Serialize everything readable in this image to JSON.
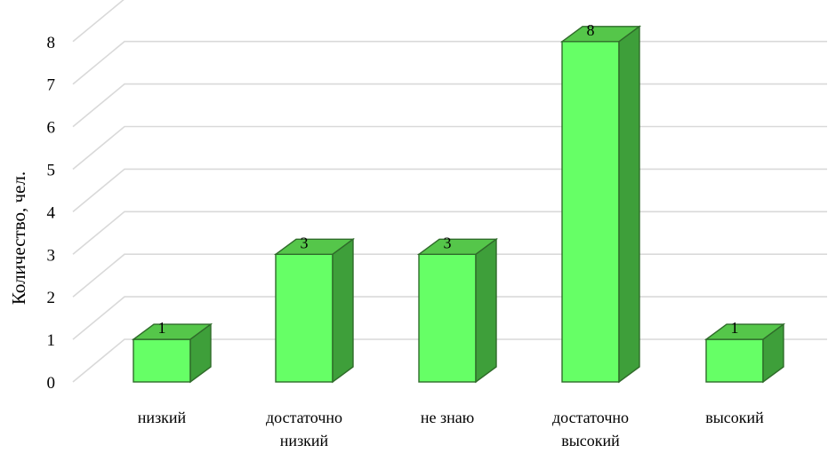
{
  "chart_data": {
    "type": "bar",
    "style": "3d-column",
    "categories": [
      "низкий",
      "достаточно низкий",
      "не знаю",
      "достаточно высокий",
      "высокий"
    ],
    "category_lines": [
      [
        "низкий"
      ],
      [
        "достаточно",
        "низкий"
      ],
      [
        "не знаю"
      ],
      [
        "достаточно",
        "высокий"
      ],
      [
        "высокий"
      ]
    ],
    "values": [
      1,
      3,
      3,
      8,
      1
    ],
    "data_labels": [
      "1",
      "3",
      "3",
      "8",
      "1"
    ],
    "ylabel": "Количество, чел.",
    "xlabel": "",
    "title": "",
    "ylim": [
      0,
      8
    ],
    "y_ticks": [
      "0",
      "1",
      "2",
      "3",
      "4",
      "5",
      "6",
      "7",
      "8"
    ],
    "grid": true,
    "legend": "none",
    "colors": {
      "bar_front": "#66ff66",
      "bar_top": "#55c64a",
      "bar_side": "#3e9f3a",
      "bar_edge": "#2f6b2a",
      "grid": "#d9d9d9"
    }
  }
}
